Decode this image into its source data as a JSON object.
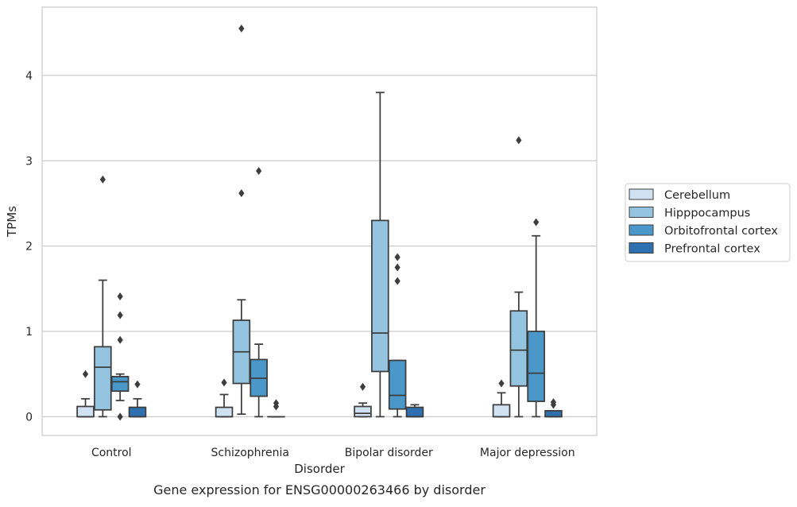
{
  "chart_data": {
    "type": "boxplot",
    "title": "",
    "xlabel": "Disorder",
    "ylabel": "TPMs",
    "caption": "Gene expression for ENSG00000263466 by disorder",
    "ylim": [
      -0.22,
      4.8
    ],
    "yticks": [
      0,
      1,
      2,
      3,
      4
    ],
    "grid": "horizontal",
    "legend_position": "right",
    "categories": [
      "Control",
      "Schizophrenia",
      "Bipolar disorder",
      "Major depression"
    ],
    "series": [
      {
        "name": "Cerebellum",
        "color": "#d0e1f2",
        "boxes": [
          {
            "whisker_low": 0,
            "q1": 0,
            "median": 0,
            "q3": 0.12,
            "whisker_high": 0.21,
            "outliers": [
              0.5
            ]
          },
          {
            "whisker_low": 0,
            "q1": 0,
            "median": 0,
            "q3": 0.11,
            "whisker_high": 0.26,
            "outliers": [
              0.4
            ]
          },
          {
            "whisker_low": 0,
            "q1": 0,
            "median": 0.04,
            "q3": 0.12,
            "whisker_high": 0.16,
            "outliers": [
              0.35
            ]
          },
          {
            "whisker_low": 0,
            "q1": 0,
            "median": 0,
            "q3": 0.14,
            "whisker_high": 0.28,
            "outliers": [
              0.39
            ]
          }
        ]
      },
      {
        "name": "Hipppocampus",
        "color": "#94c4df",
        "boxes": [
          {
            "whisker_low": 0,
            "q1": 0.08,
            "median": 0.58,
            "q3": 0.82,
            "whisker_high": 1.6,
            "outliers": [
              2.78
            ]
          },
          {
            "whisker_low": 0.03,
            "q1": 0.39,
            "median": 0.76,
            "q3": 1.13,
            "whisker_high": 1.37,
            "outliers": [
              2.62,
              4.55
            ]
          },
          {
            "whisker_low": 0,
            "q1": 0.53,
            "median": 0.98,
            "q3": 2.3,
            "whisker_high": 3.8,
            "outliers": []
          },
          {
            "whisker_low": 0,
            "q1": 0.36,
            "median": 0.78,
            "q3": 1.24,
            "whisker_high": 1.46,
            "outliers": [
              3.24
            ]
          }
        ]
      },
      {
        "name": "Orbitofrontal cortex",
        "color": "#4a98c9",
        "boxes": [
          {
            "whisker_low": 0.19,
            "q1": 0.3,
            "median": 0.41,
            "q3": 0.47,
            "whisker_high": 0.5,
            "outliers": [
              0,
              0.9,
              1.19,
              1.41
            ]
          },
          {
            "whisker_low": 0,
            "q1": 0.24,
            "median": 0.45,
            "q3": 0.67,
            "whisker_high": 0.85,
            "outliers": [
              2.88
            ]
          },
          {
            "whisker_low": 0,
            "q1": 0.09,
            "median": 0.25,
            "q3": 0.66,
            "whisker_high": 0.66,
            "outliers": [
              1.59,
              1.75,
              1.87
            ]
          },
          {
            "whisker_low": 0,
            "q1": 0.18,
            "median": 0.51,
            "q3": 1.0,
            "whisker_high": 2.12,
            "outliers": [
              2.28
            ]
          }
        ]
      },
      {
        "name": "Prefrontal cortex",
        "color": "#2e6fb0",
        "boxes": [
          {
            "whisker_low": 0,
            "q1": 0,
            "median": 0,
            "q3": 0.11,
            "whisker_high": 0.21,
            "outliers": [
              0.38
            ]
          },
          {
            "whisker_low": 0,
            "q1": 0,
            "median": 0,
            "q3": 0,
            "whisker_high": 0,
            "outliers": [
              0.12,
              0.16
            ]
          },
          {
            "whisker_low": 0,
            "q1": 0,
            "median": 0,
            "q3": 0.11,
            "whisker_high": 0.14,
            "outliers": []
          },
          {
            "whisker_low": 0,
            "q1": 0,
            "median": 0,
            "q3": 0.07,
            "whisker_high": 0.07,
            "outliers": [
              0.14,
              0.17
            ]
          }
        ]
      }
    ]
  }
}
